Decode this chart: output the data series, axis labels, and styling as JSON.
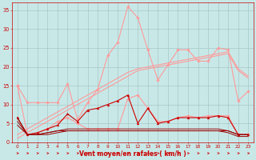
{
  "x": [
    0,
    1,
    2,
    3,
    4,
    5,
    6,
    7,
    8,
    9,
    10,
    11,
    12,
    13,
    14,
    15,
    16,
    17,
    18,
    19,
    20,
    21,
    22,
    23
  ],
  "series": [
    {
      "name": "rafales_max",
      "color": "#FF9999",
      "linewidth": 0.8,
      "marker": "D",
      "markersize": 1.8,
      "y": [
        15.0,
        10.5,
        10.5,
        10.5,
        10.5,
        15.5,
        6.0,
        10.5,
        14.0,
        23.0,
        26.5,
        36.0,
        33.0,
        24.5,
        16.5,
        20.5,
        24.5,
        24.5,
        21.5,
        21.5,
        25.0,
        24.5,
        11.0,
        13.5
      ]
    },
    {
      "name": "moyenne_marked",
      "color": "#FF9999",
      "linewidth": 0.8,
      "marker": "D",
      "markersize": 1.8,
      "y": [
        15.0,
        2.0,
        2.5,
        3.5,
        5.5,
        6.5,
        5.0,
        3.5,
        3.5,
        3.5,
        3.5,
        11.5,
        12.5,
        9.0,
        5.5,
        5.5,
        6.5,
        7.0,
        6.5,
        7.0,
        7.0,
        7.0,
        2.0,
        2.0
      ]
    },
    {
      "name": "trend_line1",
      "color": "#FF9999",
      "linewidth": 0.8,
      "marker": null,
      "markersize": 0,
      "y": [
        2.0,
        3.5,
        5.0,
        6.5,
        8.0,
        9.5,
        11.0,
        12.5,
        14.0,
        15.5,
        17.0,
        18.5,
        19.5,
        20.0,
        20.5,
        21.0,
        21.5,
        22.0,
        22.5,
        23.0,
        23.5,
        24.0,
        19.5,
        17.5
      ]
    },
    {
      "name": "trend_line2",
      "color": "#FF9999",
      "linewidth": 0.8,
      "marker": null,
      "markersize": 0,
      "y": [
        1.0,
        2.5,
        4.0,
        5.5,
        7.0,
        8.5,
        10.0,
        11.5,
        13.0,
        14.5,
        16.0,
        17.5,
        19.0,
        19.5,
        20.0,
        20.5,
        21.0,
        21.5,
        22.0,
        22.5,
        23.0,
        23.5,
        19.0,
        17.0
      ]
    },
    {
      "name": "vent_moyen",
      "color": "#CC0000",
      "linewidth": 0.8,
      "marker": "^",
      "markersize": 2.0,
      "y": [
        6.5,
        2.0,
        2.5,
        3.5,
        4.5,
        7.5,
        5.5,
        8.5,
        9.0,
        10.0,
        11.0,
        12.5,
        5.0,
        9.0,
        5.0,
        5.5,
        6.5,
        6.5,
        6.5,
        6.5,
        7.0,
        6.5,
        2.0,
        2.0
      ]
    },
    {
      "name": "dark_line1",
      "color": "#990000",
      "linewidth": 0.7,
      "marker": null,
      "markersize": 0,
      "y": [
        6.5,
        2.0,
        2.0,
        2.5,
        3.0,
        3.0,
        3.0,
        3.0,
        3.0,
        3.0,
        3.0,
        3.0,
        3.0,
        3.0,
        3.0,
        3.0,
        3.0,
        3.0,
        3.0,
        3.0,
        3.0,
        3.0,
        2.0,
        2.0
      ]
    },
    {
      "name": "dark_line2",
      "color": "#990000",
      "linewidth": 0.7,
      "marker": null,
      "markersize": 0,
      "y": [
        5.5,
        2.0,
        2.0,
        2.5,
        3.0,
        3.5,
        3.5,
        3.5,
        3.5,
        3.5,
        3.5,
        3.5,
        3.5,
        3.5,
        3.5,
        3.5,
        3.5,
        3.5,
        3.5,
        3.5,
        3.5,
        3.0,
        2.0,
        2.0
      ]
    },
    {
      "name": "dark_line3",
      "color": "#990000",
      "linewidth": 0.7,
      "marker": null,
      "markersize": 0,
      "y": [
        4.5,
        2.0,
        2.0,
        2.0,
        2.5,
        3.0,
        3.0,
        3.0,
        3.0,
        3.0,
        3.0,
        3.0,
        3.0,
        3.0,
        3.0,
        3.0,
        3.0,
        3.0,
        3.0,
        3.0,
        3.0,
        2.5,
        1.5,
        1.5
      ]
    }
  ],
  "xlabel": "Vent moyen/en rafales ( km/h )",
  "xlim": [
    -0.5,
    23.5
  ],
  "ylim": [
    0,
    37
  ],
  "yticks": [
    0,
    5,
    10,
    15,
    20,
    25,
    30,
    35
  ],
  "xticks": [
    0,
    1,
    2,
    3,
    4,
    5,
    6,
    7,
    8,
    9,
    10,
    11,
    12,
    13,
    14,
    15,
    16,
    17,
    18,
    19,
    20,
    21,
    22,
    23
  ],
  "bg_color": "#C8E8E8",
  "grid_color": "#A8C8C8",
  "tick_color": "#CC0000",
  "label_color": "#CC0000"
}
